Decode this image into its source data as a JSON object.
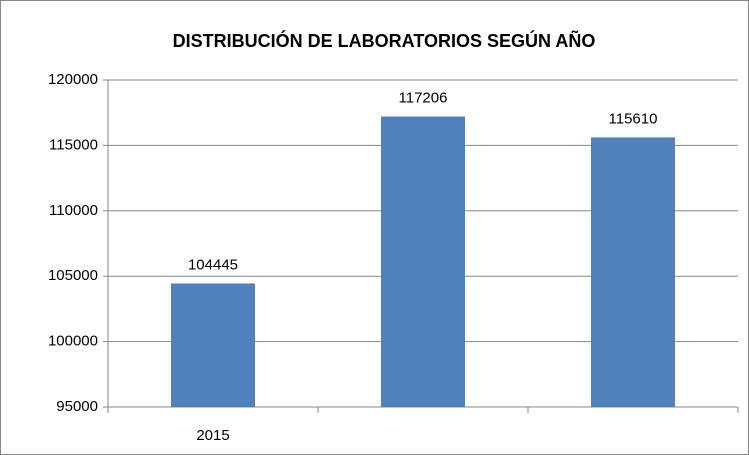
{
  "chart_data": {
    "type": "bar",
    "title": "DISTRIBUCIÓN DE LABORATORIOS SEGÚN AÑO",
    "categories": [
      "2015",
      null,
      null
    ],
    "values": [
      104445,
      117206,
      115610
    ],
    "color": "#4f81bd",
    "ylim": [
      95000,
      120000
    ],
    "yticks": [
      95000,
      100000,
      105000,
      110000,
      115000,
      120000
    ],
    "grid": true
  }
}
